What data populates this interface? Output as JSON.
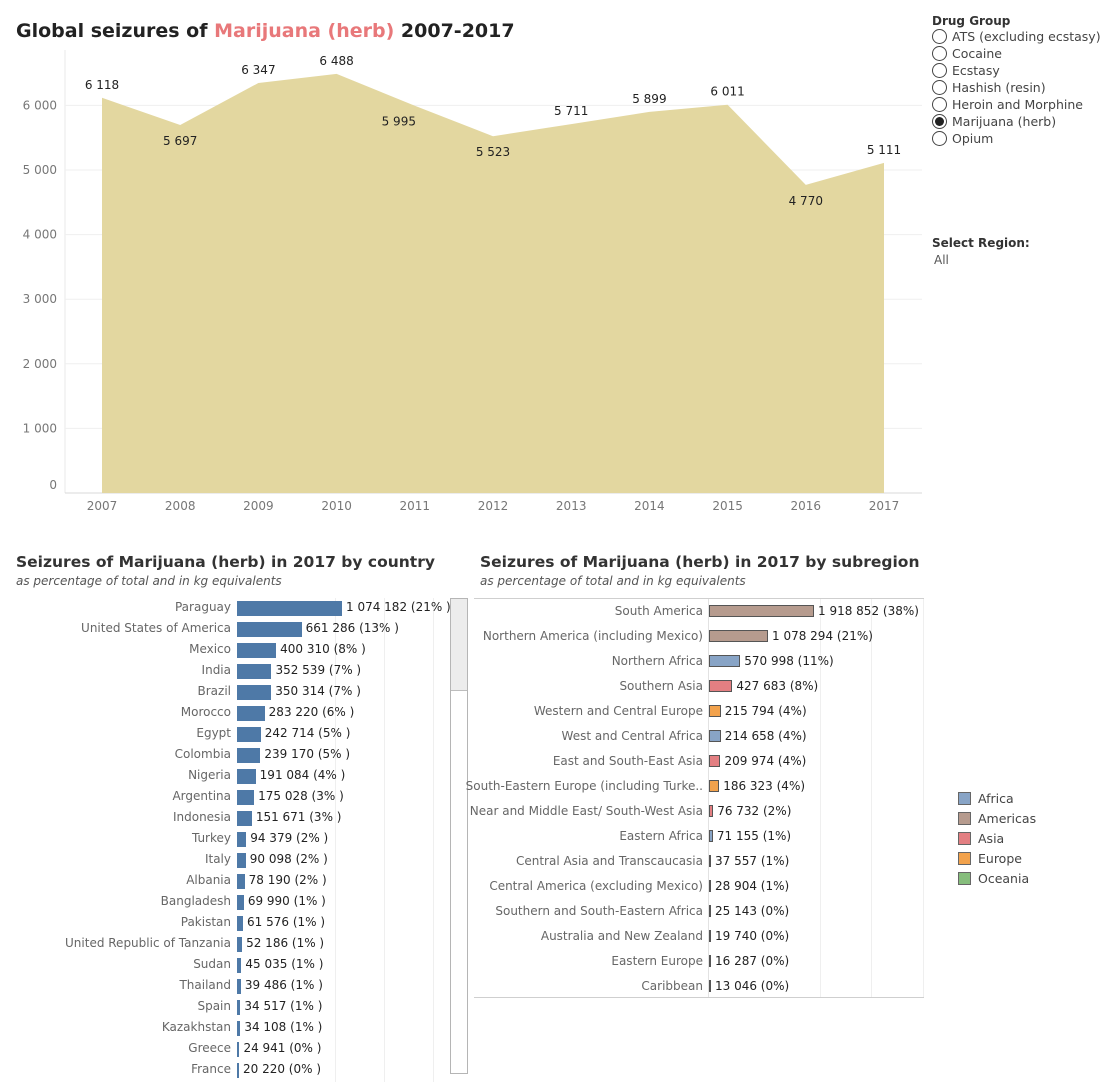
{
  "header": {
    "title_prefix": "Global seizures of ",
    "title_drug": "Marijuana (herb)",
    "title_suffix": " 2007-2017",
    "accent_color": "#e8787a"
  },
  "drug_group": {
    "title": "Drug Group",
    "options": [
      "ATS (excluding ecstasy)",
      "Cocaine",
      "Ecstasy",
      "Hashish (resin)",
      "Heroin and Morphine",
      "Marijuana (herb)",
      "Opium"
    ],
    "selected": "Marijuana (herb)"
  },
  "region_filter": {
    "title": "Select Region:",
    "value": "All"
  },
  "country_section": {
    "title": "Seizures of Marijuana (herb)  in 2017 by country",
    "caption": "as percentage of total and in kg equivalents"
  },
  "subregion_section": {
    "title": "Seizures of Marijuana (herb) in 2017 by subregion",
    "caption": "as percentage of total and in kg equivalents"
  },
  "legend": {
    "items": [
      {
        "name": "Africa",
        "color": "#88a4c6"
      },
      {
        "name": "Americas",
        "color": "#b69b8e"
      },
      {
        "name": "Asia",
        "color": "#e37f82"
      },
      {
        "name": "Europe",
        "color": "#f2a24c"
      },
      {
        "name": "Oceania",
        "color": "#86bd7c"
      }
    ]
  },
  "chart_data": [
    {
      "type": "area",
      "x": [
        "2007",
        "2008",
        "2009",
        "2010",
        "2011",
        "2012",
        "2013",
        "2014",
        "2015",
        "2016",
        "2017"
      ],
      "values": [
        6118,
        5697,
        6347,
        6488,
        5995,
        5523,
        5711,
        5899,
        6011,
        4770,
        5111
      ],
      "data_labels": [
        "6 118",
        "5 697",
        "6 347",
        "6 488",
        "5 995",
        "5 523",
        "5 711",
        "5 899",
        "6 011",
        "4 770",
        "5 111"
      ],
      "yticks": [
        "0",
        "1 000",
        "2 000",
        "3 000",
        "4 000",
        "5 000",
        "6 000"
      ],
      "ylim": [
        0,
        6800
      ],
      "color": "#e3d7a0",
      "grid": true
    },
    {
      "type": "bar",
      "orientation": "horizontal",
      "color": "#4e79a7",
      "categories": [
        "Paraguay",
        "United States of America",
        "Mexico",
        "India",
        "Brazil",
        "Morocco",
        "Egypt",
        "Colombia",
        "Nigeria",
        "Argentina",
        "Indonesia",
        "Turkey",
        "Italy",
        "Albania",
        "Bangladesh",
        "Pakistan",
        "United Republic of Tanzania",
        "Sudan",
        "Thailand",
        "Spain",
        "Kazakhstan",
        "Greece",
        "France"
      ],
      "values": [
        1074182,
        661286,
        400310,
        352539,
        350314,
        283220,
        242714,
        239170,
        191084,
        175028,
        151671,
        94379,
        90098,
        78190,
        69990,
        61576,
        52186,
        45035,
        39486,
        34517,
        34108,
        24941,
        20220
      ],
      "labels": [
        "1 074 182 (21% )",
        "661 286 (13% )",
        "400 310 (8% )",
        "352 539 (7% )",
        "350 314 (7% )",
        "283 220 (6% )",
        "242 714 (5% )",
        "239 170 (5% )",
        "191 084 (4% )",
        "175 028 (3% )",
        "151 671 (3% )",
        "94 379 (2% )",
        "90 098 (2% )",
        "78 190 (2% )",
        "69 990 (1% )",
        "61 576 (1% )",
        "52 186 (1% )",
        "45 035 (1% )",
        "39 486 (1% )",
        "34 517 (1% )",
        "34 108 (1% )",
        "24 941 (0% )",
        "20 220 (0% )"
      ]
    },
    {
      "type": "bar",
      "orientation": "horizontal",
      "categories": [
        "South America",
        "Northern America (including Mexico)",
        "Northern Africa",
        "Southern Asia",
        "Western and Central Europe",
        "West and Central Africa",
        "East and South-East Asia",
        "South-Eastern Europe (including Turke..",
        "Near and Middle East/ South-West Asia",
        "Eastern Africa",
        "Central Asia and Transcaucasia",
        "Central America (excluding Mexico)",
        "Southern and South-Eastern Africa",
        "Australia and New Zealand",
        "Eastern Europe",
        "Caribbean"
      ],
      "values": [
        1918852,
        1078294,
        570998,
        427683,
        215794,
        214658,
        209974,
        186323,
        76732,
        71155,
        37557,
        28904,
        25143,
        19740,
        16287,
        13046
      ],
      "regions": [
        "Americas",
        "Americas",
        "Africa",
        "Asia",
        "Europe",
        "Africa",
        "Asia",
        "Europe",
        "Asia",
        "Africa",
        "Asia",
        "Americas",
        "Africa",
        "Oceania",
        "Europe",
        "Americas"
      ],
      "labels": [
        "1 918 852 (38%)",
        "1 078 294 (21%)",
        "570 998 (11%)",
        "427 683 (8%)",
        "215 794 (4%)",
        "214 658 (4%)",
        "209 974 (4%)",
        "186 323 (4%)",
        "76 732 (2%)",
        "71 155 (1%)",
        "37 557 (1%)",
        "28 904 (1%)",
        "25 143 (0%)",
        "19 740 (0%)",
        "16 287 (0%)",
        "13 046 (0%)"
      ]
    }
  ]
}
